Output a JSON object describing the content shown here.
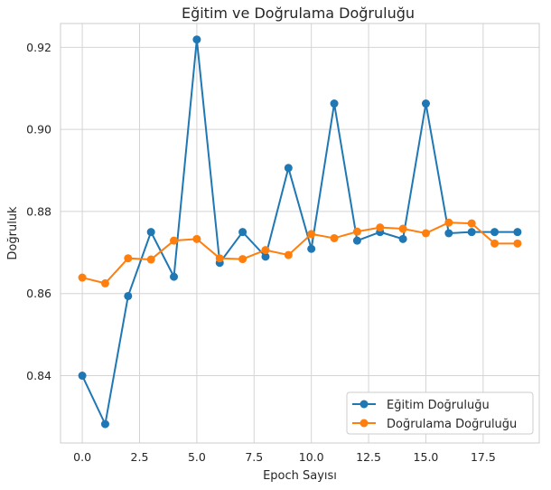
{
  "colors": {
    "train": "#1f77b4",
    "val": "#ff7f0e",
    "grid": "#d4d4d4",
    "axes_edge": "#cccccc"
  },
  "chart_data": {
    "type": "line",
    "title": "Eğitim ve Doğrulama Doğruluğu",
    "xlabel": "Epoch Sayısı",
    "ylabel": "Doğruluk",
    "xlim": [
      -0.95,
      19.95
    ],
    "ylim": [
      0.8236,
      0.9258
    ],
    "xticks": [
      0.0,
      2.5,
      5.0,
      7.5,
      10.0,
      12.5,
      15.0,
      17.5
    ],
    "xtick_labels": [
      "0.0",
      "2.5",
      "5.0",
      "7.5",
      "10.0",
      "12.5",
      "15.0",
      "17.5"
    ],
    "yticks": [
      0.84,
      0.86,
      0.88,
      0.9,
      0.92
    ],
    "ytick_labels": [
      "0.84",
      "0.86",
      "0.88",
      "0.90",
      "0.92"
    ],
    "grid": true,
    "legend_position": "lower-right",
    "x": [
      0,
      1,
      2,
      3,
      4,
      5,
      6,
      7,
      8,
      9,
      10,
      11,
      12,
      13,
      14,
      15,
      16,
      17,
      18,
      19
    ],
    "series": [
      {
        "name": "Eğitim Doğruluğu",
        "color_key": "train",
        "values": [
          0.84,
          0.8282,
          0.8594,
          0.875,
          0.8641,
          0.9219,
          0.8675,
          0.875,
          0.869,
          0.8906,
          0.8709,
          0.9063,
          0.8729,
          0.875,
          0.8733,
          0.9063,
          0.8747,
          0.875,
          0.875,
          0.875
        ]
      },
      {
        "name": "Doğrulama Doğruluğu",
        "color_key": "val",
        "values": [
          0.8639,
          0.8625,
          0.8686,
          0.8683,
          0.8729,
          0.8733,
          0.8686,
          0.8684,
          0.8706,
          0.8694,
          0.8745,
          0.8735,
          0.8751,
          0.8761,
          0.8758,
          0.8747,
          0.8773,
          0.8771,
          0.8722,
          0.8722
        ]
      }
    ]
  }
}
